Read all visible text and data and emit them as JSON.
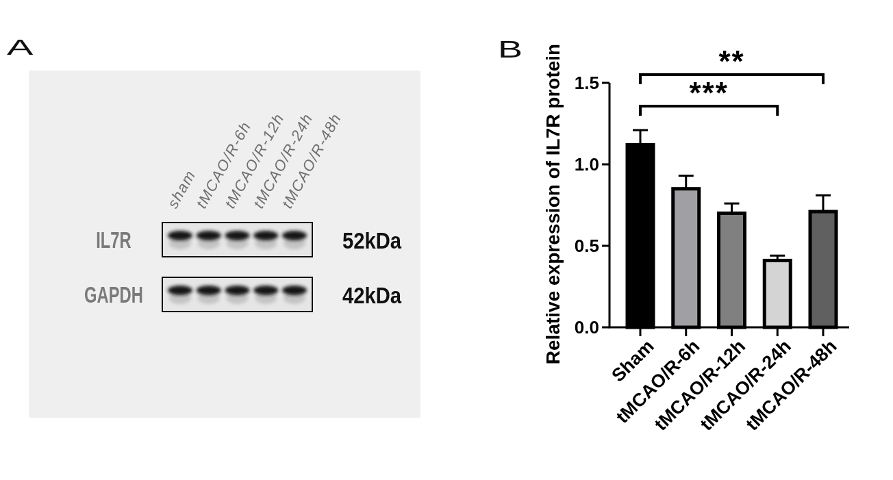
{
  "chart_data": [
    {
      "type": "other",
      "title": "A",
      "categories": [
        "sham",
        "tMCAO/R-6h",
        "tMCAO/R-12h",
        "tMCAO/R-24h",
        "tMCAO/R-48h"
      ],
      "y_categories": [
        "IL7R",
        "GAPDH"
      ],
      "y2_categories": [
        "52kDa",
        "42kDa"
      ]
    },
    {
      "type": "bar",
      "title": "B",
      "ylabel": "Relative expression of IL7R protein",
      "categories": [
        "Sham",
        "tMCAO/R-6h",
        "tMCAO/R-12h",
        "tMCAO/R-24h",
        "tMCAO/R-48h"
      ],
      "values": [
        1.12,
        0.85,
        0.7,
        0.41,
        0.71
      ],
      "colors": [
        "#000000",
        "#a0a0a4",
        "#808080",
        "#d4d4d4",
        "#606060"
      ],
      "errors": [
        [
          1.12,
          1.21
        ],
        [
          0.85,
          0.93
        ],
        [
          0.7,
          0.76
        ],
        [
          0.41,
          0.44
        ],
        [
          0.71,
          0.81
        ]
      ],
      "ylim": [
        0,
        1.5
      ],
      "yticks": [
        {
          "value": 0,
          "label": "0.0"
        },
        0.5,
        {
          "value": 1,
          "label": "1.0"
        },
        1.5
      ],
      "annotations": [
        "***",
        "**"
      ]
    }
  ]
}
